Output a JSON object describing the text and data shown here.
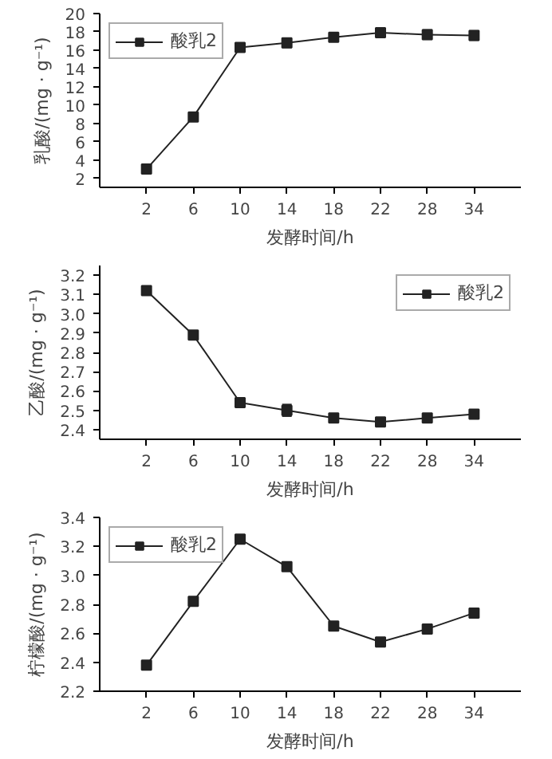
{
  "chart_data": [
    {
      "type": "line",
      "categories": [
        "2",
        "6",
        "10",
        "14",
        "18",
        "22",
        "28",
        "34"
      ],
      "xlabel": "发酵时间/h",
      "ylabel": "乳酸/(mg · g⁻¹)",
      "ylim": [
        1,
        20
      ],
      "yticks": [
        2,
        4,
        6,
        8,
        10,
        12,
        14,
        16,
        18,
        20
      ],
      "legend": "top left",
      "marker": "square",
      "grid": false,
      "series": [
        {
          "name": "酸乳2",
          "color": "#222222",
          "values": [
            3.0,
            8.7,
            16.3,
            16.8,
            17.4,
            17.9,
            17.7,
            17.6
          ],
          "errors": [
            0.2,
            0.3,
            0.4,
            0.5,
            0.3,
            0.5,
            0.5,
            0.5
          ]
        }
      ]
    },
    {
      "type": "line",
      "categories": [
        "2",
        "6",
        "10",
        "14",
        "18",
        "22",
        "28",
        "34"
      ],
      "xlabel": "发酵时间/h",
      "ylabel": "乙酸/(mg · g⁻¹)",
      "ylim": [
        2.35,
        3.25
      ],
      "yticks": [
        2.4,
        2.5,
        2.6,
        2.7,
        2.8,
        2.9,
        {
          "value": 3,
          "label": "3.0"
        },
        3.1,
        3.2
      ],
      "legend": "top right",
      "marker": "square",
      "grid": false,
      "series": [
        {
          "name": "酸乳2",
          "color": "#222222",
          "values": [
            3.12,
            2.89,
            2.54,
            2.5,
            2.46,
            2.44,
            2.46,
            2.48
          ],
          "errors": [
            0.01,
            0.02,
            0.01,
            0.03,
            0.01,
            0.01,
            0.01,
            0.01
          ]
        }
      ]
    },
    {
      "type": "line",
      "categories": [
        "2",
        "6",
        "10",
        "14",
        "18",
        "22",
        "28",
        "34"
      ],
      "xlabel": "发酵时间/h",
      "ylabel": "柠檬酸/(mg · g⁻¹)",
      "ylim": [
        2.2,
        3.4
      ],
      "yticks": [
        2.2,
        2.4,
        2.6,
        2.8,
        {
          "value": 3,
          "label": "3.0"
        },
        3.2,
        3.4
      ],
      "legend": "top left",
      "marker": "square",
      "grid": false,
      "series": [
        {
          "name": "酸乳2",
          "color": "#222222",
          "values": [
            2.38,
            2.82,
            3.25,
            3.06,
            2.65,
            2.54,
            2.63,
            2.74
          ],
          "errors": [
            0.01,
            0.02,
            0.01,
            0.01,
            0.01,
            0.01,
            0.02,
            0.01
          ]
        }
      ]
    }
  ]
}
